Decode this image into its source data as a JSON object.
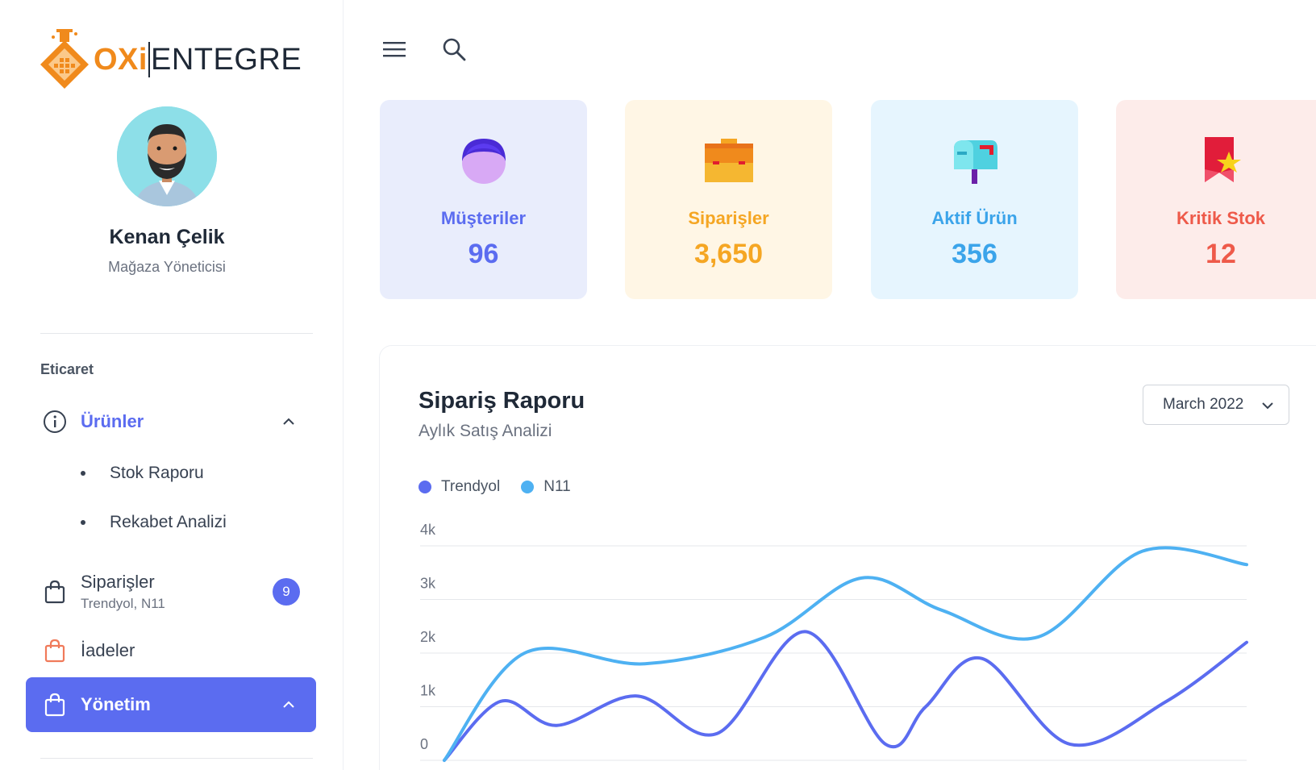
{
  "brand": {
    "logo_primary": "OXi",
    "logo_secondary": "ENTEGRE",
    "accent": "#f08a1c"
  },
  "profile": {
    "name": "Kenan Çelik",
    "role": "Mağaza Yöneticisi"
  },
  "sidebar": {
    "section": "Eticaret",
    "items": [
      {
        "label": "Ürünler",
        "icon": "info-circle-icon",
        "expanded": true
      },
      {
        "label": "Siparişler",
        "sub": "Trendyol, N11",
        "icon": "shopping-bag-icon",
        "badge": "9"
      },
      {
        "label": "İadeler",
        "icon": "shopping-bag-orange-icon"
      },
      {
        "label": "Yönetim",
        "icon": "shopping-bag-icon",
        "selected": true
      }
    ],
    "subitems": [
      "Stok Raporu",
      "Rekabet Analizi"
    ]
  },
  "topbar": {
    "menu_icon": "hamburger-menu-icon",
    "search_icon": "search-icon"
  },
  "stats": [
    {
      "label": "Müşteriler",
      "value": "96",
      "icon": "customer-icon",
      "bg": "#e9edfc",
      "color": "#5b6cf0"
    },
    {
      "label": "Siparişler",
      "value": "3,650",
      "icon": "briefcase-icon",
      "bg": "#fff6e5",
      "color": "#f5a623"
    },
    {
      "label": "Aktif Ürün",
      "value": "356",
      "icon": "mailbox-icon",
      "bg": "#e6f5fe",
      "color": "#3ba4ea"
    },
    {
      "label": "Kritik Stok",
      "value": "12",
      "icon": "flag-star-icon",
      "bg": "#fdecea",
      "color": "#ee5a4a"
    }
  ],
  "report": {
    "title": "Sipariş Raporu",
    "subtitle": "Aylık Satış Analizi",
    "period": "March 2022"
  },
  "chart_data": {
    "type": "line",
    "ylim": [
      0,
      4000
    ],
    "yticks": [
      "0",
      "1k",
      "2k",
      "3k",
      "4k"
    ],
    "series": [
      {
        "name": "Trendyol",
        "color": "#5b6cf0",
        "x": [
          0,
          0.07,
          0.14,
          0.24,
          0.34,
          0.45,
          0.55,
          0.6,
          0.67,
          0.78,
          0.9,
          1.0
        ],
        "values": [
          0,
          1100,
          650,
          1200,
          500,
          2400,
          300,
          1000,
          1900,
          300,
          1100,
          2200
        ]
      },
      {
        "name": "N11",
        "color": "#4eb1f2",
        "x": [
          0,
          0.1,
          0.25,
          0.4,
          0.52,
          0.62,
          0.74,
          0.87,
          1.0
        ],
        "values": [
          0,
          2000,
          1800,
          2300,
          3400,
          2800,
          2300,
          3900,
          3650
        ]
      }
    ]
  }
}
